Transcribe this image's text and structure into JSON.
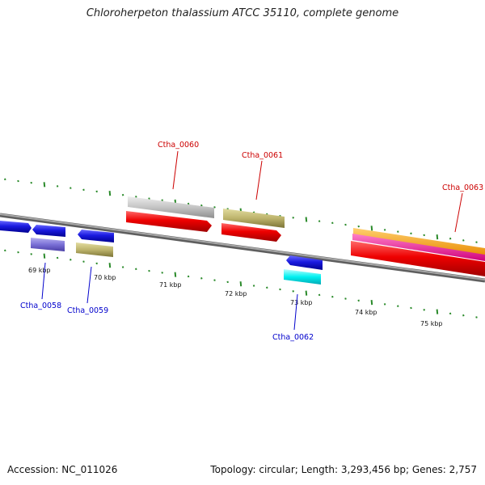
{
  "title": "Chloroherpeton thalassium ATCC 35110, complete genome",
  "footer": {
    "accession": "Accession: NC_011026",
    "summary": "Topology: circular; Length: 3,293,456 bp; Genes: 2,757"
  },
  "colors": {
    "backbone": "#8a8a8a",
    "ticks": "#2a8a2a",
    "forward_label": "#cc0000",
    "reverse_label": "#0000cc"
  },
  "scale_labels": [
    "69 kbp",
    "70 kbp",
    "71 kbp",
    "72 kbp",
    "73 kbp",
    "74 kbp",
    "75 kbp"
  ],
  "genes": [
    {
      "label": "Ctha_0058",
      "strand": "reverse",
      "color": "#2c2cd6"
    },
    {
      "label": "Ctha_0059",
      "strand": "reverse",
      "color": "#1a1ae0"
    },
    {
      "label": "Ctha_0060",
      "strand": "forward",
      "color": "#ee0000"
    },
    {
      "label": "Ctha_0061",
      "strand": "forward",
      "color": "#ee0000"
    },
    {
      "label": "Ctha_0062",
      "strand": "reverse",
      "color": "#1a1ae0"
    },
    {
      "label": "Ctha_0063",
      "strand": "forward",
      "color": "#ee0000"
    }
  ]
}
